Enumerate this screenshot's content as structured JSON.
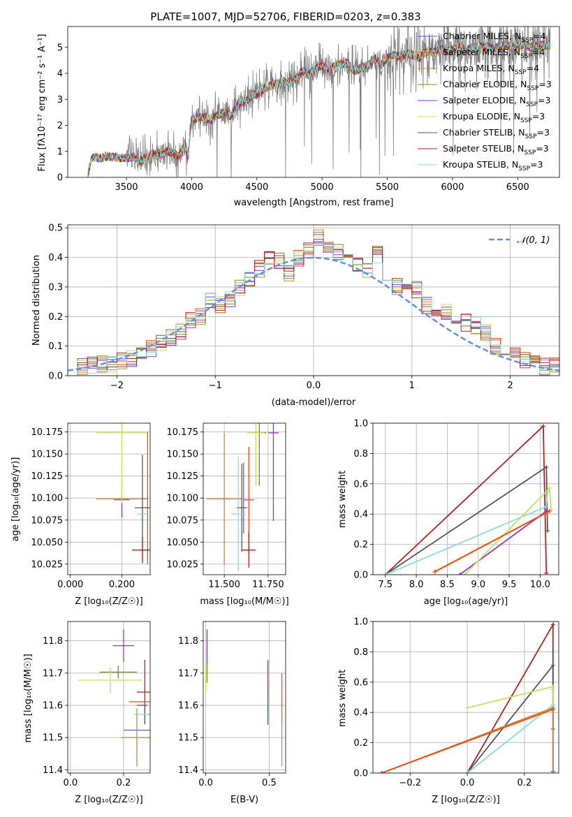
{
  "colors": {
    "Chabrier MILES": "#6a5acd",
    "Salpeter MILES": "#ff4500",
    "Kroupa MILES": "#cd853f",
    "Chabrier ELODIE": "#6b8e23",
    "Salpeter ELODIE": "#9932cc",
    "Kroupa ELODIE": "#c8e060",
    "Chabrier STELIB": "#555555",
    "Salpeter STELIB": "#b22222",
    "Kroupa STELIB": "#88dde0"
  },
  "chart_data": [
    {
      "id": "spectrum",
      "type": "line",
      "title": "PLATE=1007, MJD=52706, FIBERID=0203, z=0.383",
      "xlabel": "wavelength [Angstrom, rest frame]",
      "ylabel": "Flux [fλ10⁻¹⁷ erg cm⁻² s⁻¹ A⁻¹]",
      "xlim": [
        3050,
        6820
      ],
      "ylim": [
        0,
        5.8
      ],
      "xticks": [
        3500,
        4000,
        4500,
        5000,
        5500,
        6000,
        6500
      ],
      "yticks": [
        0,
        1,
        2,
        3,
        4,
        5
      ],
      "legend_position": "right",
      "legend": [
        {
          "label": "Chabrier MILES, Nₛₛₚ=4",
          "base": "Chabrier MILES, N",
          "sub": "SSP",
          "tail": "=4",
          "color": "#6a5acd"
        },
        {
          "label": "Salpeter MILES, Nₛₛₚ=4",
          "base": "Salpeter MILES, N",
          "sub": "SSP",
          "tail": "=4",
          "color": "#ff4500"
        },
        {
          "label": "Kroupa MILES, Nₛₛₚ=4",
          "base": "Kroupa MILES, N",
          "sub": "SSP",
          "tail": "=4",
          "color": "#cd853f"
        },
        {
          "label": "Chabrier ELODIE, Nₛₛₚ=3",
          "base": "Chabrier ELODIE, N",
          "sub": "SSP",
          "tail": "=3",
          "color": "#6b8e23"
        },
        {
          "label": "Salpeter ELODIE, Nₛₛₚ=3",
          "base": "Salpeter ELODIE, N",
          "sub": "SSP",
          "tail": "=3",
          "color": "#9932cc"
        },
        {
          "label": "Kroupa ELODIE, Nₛₛₚ=3",
          "base": "Kroupa ELODIE, N",
          "sub": "SSP",
          "tail": "=3",
          "color": "#c8e060"
        },
        {
          "label": "Chabrier STELIB, Nₛₛₚ=3",
          "base": "Chabrier STELIB, N",
          "sub": "SSP",
          "tail": "=3",
          "color": "#555555"
        },
        {
          "label": "Salpeter STELIB, Nₛₛₚ=3",
          "base": "Salpeter STELIB, N",
          "sub": "SSP",
          "tail": "=3",
          "color": "#b22222"
        },
        {
          "label": "Kroupa STELIB, Nₛₛₚ=3",
          "base": "Kroupa STELIB, N",
          "sub": "SSP",
          "tail": "=3",
          "color": "#88dde0"
        }
      ],
      "data_color": "#808080",
      "model_x": [
        3200,
        3230,
        3260,
        3300,
        3350,
        3400,
        3450,
        3500,
        3550,
        3600,
        3650,
        3700,
        3750,
        3800,
        3850,
        3900,
        3950,
        3970,
        4000,
        4050,
        4100,
        4150,
        4200,
        4250,
        4300,
        4350,
        4400,
        4450,
        4500,
        4550,
        4600,
        4650,
        4700,
        4750,
        4800,
        4850,
        4900,
        4950,
        5000,
        5050,
        5100,
        5150,
        5200,
        5250,
        5300,
        5350,
        5400,
        5450,
        5500,
        5550,
        5600,
        5650,
        5700,
        5750,
        5800,
        5850,
        5900,
        5950,
        6000,
        6050,
        6100,
        6150,
        6200,
        6250,
        6300,
        6350,
        6400,
        6450,
        6500,
        6550,
        6600,
        6650,
        6700
      ],
      "model_y": [
        0.0,
        0.72,
        0.78,
        0.75,
        0.8,
        0.78,
        0.75,
        0.72,
        0.8,
        0.62,
        0.7,
        0.9,
        0.8,
        1.0,
        0.95,
        0.8,
        1.3,
        0.8,
        2.2,
        2.3,
        2.3,
        2.2,
        2.4,
        2.5,
        2.35,
        2.8,
        2.9,
        3.1,
        3.2,
        3.4,
        3.5,
        3.6,
        3.7,
        3.65,
        3.8,
        4.1,
        3.95,
        4.2,
        4.3,
        4.1,
        4.3,
        4.35,
        4.4,
        4.1,
        4.2,
        4.3,
        4.6,
        4.35,
        4.6,
        4.7,
        4.65,
        4.75,
        4.7,
        4.6,
        4.85,
        4.8,
        4.95,
        4.85,
        4.9,
        5.0,
        4.9,
        4.95,
        5.0,
        5.05,
        4.95,
        5.0,
        5.1,
        5.0,
        5.05,
        5.1,
        5.0,
        5.05,
        5.1
      ]
    },
    {
      "id": "residuals",
      "type": "line",
      "xlabel": "(data-model)/error",
      "ylabel": "Normed distribution",
      "xlim": [
        -2.5,
        2.5
      ],
      "ylim": [
        0,
        0.51
      ],
      "xticks": [
        -2,
        -1,
        0,
        1,
        2
      ],
      "yticks": [
        0.0,
        0.1,
        0.2,
        0.3,
        0.4,
        0.5
      ],
      "legend": [
        {
          "label": "𝒩(0, 1)",
          "color": "#6a8fd8",
          "style": "dashed"
        }
      ],
      "bin_centers": [
        -2.45,
        -2.35,
        -2.25,
        -2.15,
        -2.05,
        -1.95,
        -1.85,
        -1.75,
        -1.65,
        -1.55,
        -1.45,
        -1.35,
        -1.25,
        -1.15,
        -1.05,
        -0.95,
        -0.85,
        -0.75,
        -0.65,
        -0.55,
        -0.45,
        -0.35,
        -0.25,
        -0.15,
        -0.05,
        0.05,
        0.15,
        0.25,
        0.35,
        0.45,
        0.55,
        0.65,
        0.75,
        0.85,
        0.95,
        1.05,
        1.15,
        1.25,
        1.35,
        1.45,
        1.55,
        1.65,
        1.75,
        1.85,
        1.95,
        2.05,
        2.15,
        2.25,
        2.35,
        2.45
      ],
      "histogram": [
        0.025,
        0.03,
        0.035,
        0.04,
        0.04,
        0.05,
        0.06,
        0.08,
        0.09,
        0.11,
        0.13,
        0.15,
        0.19,
        0.2,
        0.25,
        0.24,
        0.26,
        0.3,
        0.33,
        0.36,
        0.4,
        0.39,
        0.35,
        0.4,
        0.42,
        0.47,
        0.43,
        0.42,
        0.39,
        0.38,
        0.36,
        0.41,
        0.34,
        0.3,
        0.28,
        0.29,
        0.24,
        0.22,
        0.22,
        0.2,
        0.18,
        0.17,
        0.15,
        0.1,
        0.08,
        0.07,
        0.05,
        0.05,
        0.03,
        0.03
      ],
      "normal_curve": {
        "mean": 0,
        "sigma": 1
      }
    },
    {
      "id": "age_vs_Z",
      "type": "scatter",
      "xlabel": "Z [log₁₀(Z/Z☉)]",
      "ylabel": "age  [log₁₀(age/yr)]",
      "xlim": [
        -0.01,
        0.31
      ],
      "ylim": [
        10.013,
        10.185
      ],
      "xticks": [
        0.0,
        0.2
      ],
      "yticks": [
        10.025,
        10.05,
        10.075,
        10.1,
        10.125,
        10.15,
        10.175
      ],
      "points": [
        {
          "m": "Chabrier MILES",
          "x": 0.2,
          "y": 10.098,
          "xerr": 0.03,
          "yerr": 0.0
        },
        {
          "m": "Salpeter MILES",
          "x": 0.3,
          "y": 10.1,
          "xerr": 0.0,
          "yerr": 0.075
        },
        {
          "m": "Kroupa MILES",
          "x": 0.2,
          "y": 10.099,
          "xerr": 0.1,
          "yerr": 0.0
        },
        {
          "m": "Chabrier ELODIE",
          "x": 0.2,
          "y": 10.174,
          "xerr": 0.0,
          "yerr": 0.0
        },
        {
          "m": "Salpeter ELODIE",
          "x": 0.2,
          "y": 10.098,
          "xerr": 0.0,
          "yerr": 0.02
        },
        {
          "m": "Kroupa ELODIE",
          "x": 0.2,
          "y": 10.174,
          "xerr": 0.1,
          "yerr": 0.08
        },
        {
          "m": "Chabrier STELIB",
          "x": 0.28,
          "y": 10.089,
          "xerr": 0.03,
          "yerr": 0.06
        },
        {
          "m": "Salpeter STELIB",
          "x": 0.28,
          "y": 10.041,
          "xerr": 0.04,
          "yerr": 0.015
        },
        {
          "m": "Kroupa STELIB",
          "x": 0.28,
          "y": 10.082,
          "xerr": 0.02,
          "yerr": 0.0
        }
      ]
    },
    {
      "id": "age_vs_mass",
      "type": "scatter",
      "xlabel": "mass [log₁₀(M/M☉)]",
      "xlim": [
        11.38,
        11.85
      ],
      "ylim": [
        10.013,
        10.185
      ],
      "xticks": [
        11.5,
        11.75
      ],
      "yticks": [
        10.025,
        10.05,
        10.075,
        10.1,
        10.125,
        10.15,
        10.175
      ],
      "points": [
        {
          "m": "Chabrier MILES",
          "x": 11.61,
          "y": 10.1,
          "xerr": 0.0,
          "yerr": 0.04
        },
        {
          "m": "Salpeter MILES",
          "x": 11.64,
          "y": 10.098,
          "xerr": 0.03,
          "yerr": 0.06
        },
        {
          "m": "Kroupa MILES",
          "x": 11.5,
          "y": 10.099,
          "xerr": 0.1,
          "yerr": 0.075
        },
        {
          "m": "Chabrier ELODIE",
          "x": 11.7,
          "y": 10.174,
          "xerr": 0.04,
          "yerr": 0.06
        },
        {
          "m": "Salpeter ELODIE",
          "x": 11.78,
          "y": 10.174,
          "xerr": 0.03,
          "yerr": 0.1
        },
        {
          "m": "Kroupa ELODIE",
          "x": 11.68,
          "y": 10.174,
          "xerr": 0.05,
          "yerr": 0.06
        },
        {
          "m": "Chabrier STELIB",
          "x": 11.6,
          "y": 10.089,
          "xerr": 0.03,
          "yerr": 0.05
        },
        {
          "m": "Salpeter STELIB",
          "x": 11.64,
          "y": 10.041,
          "xerr": 0.04,
          "yerr": 0.02
        },
        {
          "m": "Kroupa STELIB",
          "x": 11.58,
          "y": 10.082,
          "xerr": 0.04,
          "yerr": 0.065
        }
      ]
    },
    {
      "id": "mass_weight_vs_age",
      "type": "line",
      "xlabel": "age  [log₁₀(age/yr)]",
      "ylabel": "mass weight",
      "xlim": [
        7.3,
        10.3
      ],
      "ylim": [
        0,
        1
      ],
      "xticks": [
        7.5,
        8.0,
        8.5,
        9.0,
        9.5,
        10.0
      ],
      "yticks": [
        0.0,
        0.2,
        0.4,
        0.6,
        0.8,
        1.0
      ],
      "series": [
        {
          "m": "Salpeter STELIB",
          "x": [
            7.5,
            10.05,
            10.1
          ],
          "y": [
            0.0,
            0.98,
            0.01
          ]
        },
        {
          "m": "Chabrier STELIB",
          "x": [
            7.5,
            10.1,
            10.12
          ],
          "y": [
            0.0,
            0.71,
            0.29
          ]
        },
        {
          "m": "Kroupa STELIB",
          "x": [
            7.5,
            10.1,
            10.12
          ],
          "y": [
            0.0,
            0.45,
            0.55
          ]
        },
        {
          "m": "Salpeter ELODIE",
          "x": [
            8.7,
            10.1
          ],
          "y": [
            0.0,
            0.42
          ]
        },
        {
          "m": "Kroupa ELODIE",
          "x": [
            8.78,
            10.15,
            10.18
          ],
          "y": [
            0.0,
            0.57,
            0.43
          ]
        },
        {
          "m": "Kroupa MILES",
          "x": [
            8.3,
            10.15
          ],
          "y": [
            0.02,
            0.42
          ]
        },
        {
          "m": "Salpeter MILES",
          "x": [
            8.3,
            10.15
          ],
          "y": [
            0.02,
            0.42
          ]
        }
      ]
    },
    {
      "id": "mass_vs_Z",
      "type": "scatter",
      "xlabel": "Z [log₁₀(Z/Z☉)]",
      "ylabel": "mass [log₁₀(M/M☉)]",
      "xlim": [
        -0.01,
        0.3
      ],
      "ylim": [
        11.39,
        11.86
      ],
      "xticks": [
        0.0,
        0.2
      ],
      "yticks": [
        11.4,
        11.5,
        11.6,
        11.7,
        11.8
      ],
      "points": [
        {
          "m": "Salpeter ELODIE",
          "x": 0.2,
          "y": 11.785,
          "xerr": 0.04,
          "yerr": 0.05
        },
        {
          "m": "Chabrier ELODIE",
          "x": 0.18,
          "y": 11.703,
          "xerr": 0.07,
          "yerr": 0.02
        },
        {
          "m": "Kroupa ELODIE",
          "x": 0.15,
          "y": 11.678,
          "xerr": 0.12,
          "yerr": 0.04
        },
        {
          "m": "Salpeter STELIB",
          "x": 0.28,
          "y": 11.641,
          "xerr": 0.03,
          "yerr": 0.1
        },
        {
          "m": "Salpeter MILES",
          "x": 0.26,
          "y": 11.611,
          "xerr": 0.04,
          "yerr": 0.0
        },
        {
          "m": "Chabrier STELIB",
          "x": 0.27,
          "y": 11.6,
          "xerr": 0.02,
          "yerr": 0.0
        },
        {
          "m": "Kroupa STELIB",
          "x": 0.27,
          "y": 11.572,
          "xerr": 0.03,
          "yerr": 0.0
        },
        {
          "m": "Chabrier MILES",
          "x": 0.25,
          "y": 11.523,
          "xerr": 0.05,
          "yerr": 0.0
        },
        {
          "m": "Kroupa MILES",
          "x": 0.25,
          "y": 11.5,
          "xerr": 0.06,
          "yerr": 0.09
        }
      ]
    },
    {
      "id": "mass_vs_ebv",
      "type": "scatter",
      "xlabel": "E(B-V)",
      "xlim": [
        -0.02,
        0.63
      ],
      "ylim": [
        11.39,
        11.86
      ],
      "xticks": [
        0.0,
        0.5
      ],
      "yticks": [
        11.4,
        11.5,
        11.6,
        11.7,
        11.8
      ],
      "points": [
        {
          "m": "Salpeter ELODIE",
          "x": 0.01,
          "y": 11.78,
          "xerr": 0.0,
          "yerr": 0.055
        },
        {
          "m": "Chabrier ELODIE",
          "x": 0.01,
          "y": 11.7,
          "xerr": 0.0,
          "yerr": 0.03
        },
        {
          "m": "Kroupa ELODIE",
          "x": 0.0,
          "y": 11.68,
          "xerr": 0.0,
          "yerr": 0.04
        },
        {
          "m": "Salpeter STELIB",
          "x": 0.49,
          "y": 11.69,
          "xerr": 0.0,
          "yerr": 0.05
        },
        {
          "m": "Chabrier STELIB",
          "x": 0.49,
          "y": 11.6,
          "xerr": 0.0,
          "yerr": 0.06
        },
        {
          "m": "Kroupa STELIB",
          "x": 0.5,
          "y": 11.58,
          "xerr": 0.0,
          "yerr": 0.06
        },
        {
          "m": "Salpeter MILES",
          "x": 0.6,
          "y": 11.62,
          "xerr": 0.0,
          "yerr": 0.08
        },
        {
          "m": "Kroupa MILES",
          "x": 0.6,
          "y": 11.5,
          "xerr": 0.0,
          "yerr": 0.09
        }
      ]
    },
    {
      "id": "mass_weight_vs_Z",
      "type": "line",
      "xlabel": "Z [log₁₀(Z/Z☉)]",
      "ylabel": "mass weight",
      "xlim": [
        -0.33,
        0.32
      ],
      "ylim": [
        0,
        1
      ],
      "xticks": [
        -0.2,
        0.0,
        0.2
      ],
      "yticks": [
        0.0,
        0.2,
        0.4,
        0.6,
        0.8,
        1.0
      ],
      "series": [
        {
          "m": "Salpeter STELIB",
          "x": [
            0.0,
            0.3,
            0.3
          ],
          "y": [
            0.0,
            0.98,
            0.01
          ]
        },
        {
          "m": "Chabrier STELIB",
          "x": [
            0.0,
            0.3,
            0.3
          ],
          "y": [
            0.0,
            0.71,
            0.29
          ]
        },
        {
          "m": "Kroupa STELIB",
          "x": [
            0.0,
            0.3,
            0.3
          ],
          "y": [
            0.0,
            0.45,
            0.55
          ]
        },
        {
          "m": "Kroupa ELODIE",
          "x": [
            0.0,
            0.3,
            0.3
          ],
          "y": [
            0.43,
            0.57,
            0.43
          ]
        },
        {
          "m": "Kroupa MILES",
          "x": [
            -0.3,
            0.3,
            0.3
          ],
          "y": [
            0.0,
            0.43,
            0.0
          ]
        },
        {
          "m": "Salpeter MILES",
          "x": [
            -0.3,
            0.3
          ],
          "y": [
            0.0,
            0.42
          ]
        }
      ]
    }
  ]
}
